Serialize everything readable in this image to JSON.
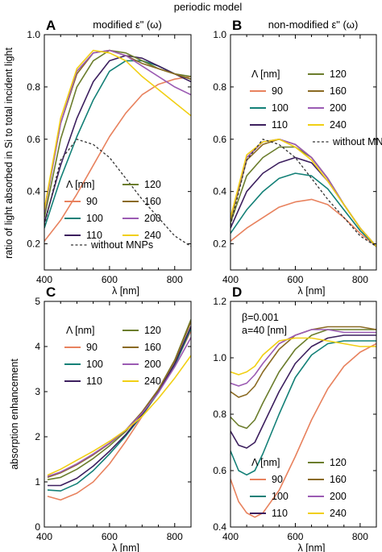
{
  "figure": {
    "title": "periodic model",
    "shared_ylabel_top": "ratio of light absorbed in Si to total incident light",
    "legend_header": "Λ [nm]",
    "colors": {
      "90": "#e8825e",
      "100": "#138077",
      "110": "#3c1f5e",
      "120": "#6b7d2c",
      "160": "#8a6a22",
      "200": "#9b5bb3",
      "240": "#f1cf14",
      "without": "#333333"
    }
  },
  "chart_data": [
    {
      "id": "A",
      "type": "line",
      "letter": "A",
      "title": "modified ε\" (ω)",
      "xlabel": "λ [nm]",
      "ylabel": "",
      "xlim": [
        400,
        850
      ],
      "ylim": [
        0.1,
        1.0
      ],
      "xticks": [
        400,
        600,
        800
      ],
      "yticks": [
        0.2,
        0.4,
        0.6,
        0.8,
        1.0
      ],
      "ytick_labels": [
        "0.2",
        "0.4",
        "0.6",
        "0.8",
        "1.0"
      ],
      "legend": [
        {
          "label": "90",
          "key": "90"
        },
        {
          "label": "100",
          "key": "100"
        },
        {
          "label": "110",
          "key": "110"
        },
        {
          "label": "120",
          "key": "120"
        },
        {
          "label": "160",
          "key": "160"
        },
        {
          "label": "200",
          "key": "200"
        },
        {
          "label": "240",
          "key": "240"
        },
        {
          "label": "without MNPs",
          "key": "without"
        }
      ],
      "series": [
        {
          "key": "90",
          "x": [
            400,
            450,
            500,
            550,
            600,
            650,
            700,
            750,
            800,
            850
          ],
          "y": [
            0.21,
            0.29,
            0.39,
            0.5,
            0.61,
            0.7,
            0.77,
            0.81,
            0.83,
            0.84
          ]
        },
        {
          "key": "100",
          "x": [
            400,
            450,
            500,
            550,
            600,
            650,
            700,
            750,
            800,
            850
          ],
          "y": [
            0.26,
            0.45,
            0.61,
            0.75,
            0.86,
            0.9,
            0.9,
            0.88,
            0.85,
            0.83
          ]
        },
        {
          "key": "110",
          "x": [
            400,
            450,
            500,
            550,
            600,
            650,
            700,
            750,
            800,
            850
          ],
          "y": [
            0.28,
            0.5,
            0.68,
            0.82,
            0.9,
            0.92,
            0.91,
            0.88,
            0.85,
            0.82
          ]
        },
        {
          "key": "120",
          "x": [
            400,
            450,
            500,
            550,
            600,
            650,
            700,
            750,
            800,
            850
          ],
          "y": [
            0.3,
            0.6,
            0.8,
            0.9,
            0.94,
            0.93,
            0.9,
            0.87,
            0.85,
            0.84
          ]
        },
        {
          "key": "160",
          "x": [
            400,
            450,
            500,
            550,
            600,
            650,
            700,
            750,
            800,
            850
          ],
          "y": [
            0.33,
            0.66,
            0.85,
            0.93,
            0.94,
            0.92,
            0.89,
            0.87,
            0.85,
            0.83
          ]
        },
        {
          "key": "200",
          "x": [
            400,
            450,
            500,
            550,
            600,
            650,
            700,
            750,
            800,
            850
          ],
          "y": [
            0.32,
            0.66,
            0.86,
            0.93,
            0.94,
            0.92,
            0.88,
            0.84,
            0.8,
            0.77
          ]
        },
        {
          "key": "240",
          "x": [
            400,
            450,
            500,
            550,
            600,
            650,
            700,
            750,
            800,
            850
          ],
          "y": [
            0.33,
            0.68,
            0.87,
            0.94,
            0.93,
            0.9,
            0.84,
            0.79,
            0.74,
            0.69
          ]
        },
        {
          "key": "without",
          "dashed": true,
          "x": [
            400,
            450,
            500,
            550,
            600,
            650,
            700,
            750,
            800,
            850
          ],
          "y": [
            0.27,
            0.52,
            0.6,
            0.58,
            0.53,
            0.45,
            0.37,
            0.3,
            0.23,
            0.19
          ]
        }
      ]
    },
    {
      "id": "B",
      "type": "line",
      "letter": "B",
      "title": "non-modified ε\" (ω)",
      "xlabel": "λ [nm]",
      "ylabel": "",
      "xlim": [
        400,
        850
      ],
      "ylim": [
        0.1,
        1.0
      ],
      "xticks": [
        400,
        600,
        800
      ],
      "yticks": [
        0.2,
        0.4,
        0.6,
        0.8,
        1.0
      ],
      "ytick_labels": [
        "0.2",
        "0.4",
        "0.6",
        "0.8",
        "1.0"
      ],
      "legend": [
        {
          "label": "90",
          "key": "90"
        },
        {
          "label": "100",
          "key": "100"
        },
        {
          "label": "110",
          "key": "110"
        },
        {
          "label": "120",
          "key": "120"
        },
        {
          "label": "160",
          "key": "160"
        },
        {
          "label": "200",
          "key": "200"
        },
        {
          "label": "240",
          "key": "240"
        },
        {
          "label": "without MNPs",
          "key": "without"
        }
      ],
      "series": [
        {
          "key": "90",
          "x": [
            400,
            450,
            500,
            550,
            600,
            650,
            700,
            750,
            800,
            850
          ],
          "y": [
            0.21,
            0.26,
            0.3,
            0.34,
            0.36,
            0.37,
            0.35,
            0.3,
            0.24,
            0.19
          ]
        },
        {
          "key": "100",
          "x": [
            400,
            450,
            500,
            550,
            600,
            650,
            700,
            750,
            800,
            850
          ],
          "y": [
            0.24,
            0.33,
            0.4,
            0.45,
            0.47,
            0.46,
            0.41,
            0.33,
            0.25,
            0.19
          ]
        },
        {
          "key": "110",
          "x": [
            400,
            450,
            500,
            550,
            600,
            650,
            700,
            750,
            800,
            850
          ],
          "y": [
            0.26,
            0.4,
            0.47,
            0.51,
            0.53,
            0.51,
            0.44,
            0.35,
            0.26,
            0.19
          ]
        },
        {
          "key": "120",
          "x": [
            400,
            450,
            500,
            550,
            600,
            650,
            700,
            750,
            800,
            850
          ],
          "y": [
            0.28,
            0.46,
            0.53,
            0.57,
            0.57,
            0.53,
            0.45,
            0.35,
            0.26,
            0.19
          ]
        },
        {
          "key": "160",
          "x": [
            400,
            450,
            500,
            550,
            600,
            650,
            700,
            750,
            800,
            850
          ],
          "y": [
            0.29,
            0.52,
            0.58,
            0.6,
            0.58,
            0.53,
            0.45,
            0.35,
            0.26,
            0.19
          ]
        },
        {
          "key": "200",
          "x": [
            400,
            450,
            500,
            550,
            600,
            650,
            700,
            750,
            800,
            850
          ],
          "y": [
            0.3,
            0.53,
            0.59,
            0.6,
            0.58,
            0.53,
            0.45,
            0.35,
            0.26,
            0.19
          ]
        },
        {
          "key": "240",
          "x": [
            400,
            450,
            500,
            550,
            600,
            650,
            700,
            750,
            800,
            850
          ],
          "y": [
            0.3,
            0.54,
            0.59,
            0.6,
            0.57,
            0.52,
            0.44,
            0.35,
            0.26,
            0.19
          ]
        },
        {
          "key": "without",
          "dashed": true,
          "x": [
            400,
            450,
            500,
            550,
            600,
            650,
            700,
            750,
            800,
            850
          ],
          "y": [
            0.27,
            0.52,
            0.6,
            0.58,
            0.53,
            0.45,
            0.37,
            0.3,
            0.23,
            0.19
          ]
        }
      ]
    },
    {
      "id": "C",
      "type": "line",
      "letter": "C",
      "title": "",
      "xlabel": "λ [nm]",
      "ylabel": "absorption enhancement",
      "xlim": [
        400,
        850
      ],
      "ylim": [
        0,
        5
      ],
      "xticks": [
        400,
        600,
        800
      ],
      "yticks": [
        0,
        1,
        2,
        3,
        4,
        5
      ],
      "ytick_labels": [
        "0",
        "1",
        "2",
        "3",
        "4",
        "5"
      ],
      "legend": [
        {
          "label": "90",
          "key": "90"
        },
        {
          "label": "100",
          "key": "100"
        },
        {
          "label": "110",
          "key": "110"
        },
        {
          "label": "120",
          "key": "120"
        },
        {
          "label": "160",
          "key": "160"
        },
        {
          "label": "200",
          "key": "200"
        },
        {
          "label": "240",
          "key": "240"
        }
      ],
      "series": [
        {
          "key": "90",
          "x": [
            410,
            450,
            500,
            550,
            600,
            650,
            700,
            750,
            800,
            850
          ],
          "y": [
            0.68,
            0.6,
            0.75,
            1.0,
            1.4,
            1.9,
            2.45,
            3.0,
            3.6,
            4.35
          ]
        },
        {
          "key": "100",
          "x": [
            410,
            450,
            500,
            550,
            600,
            650,
            700,
            750,
            800,
            850
          ],
          "y": [
            0.82,
            0.8,
            0.96,
            1.25,
            1.62,
            2.02,
            2.48,
            2.98,
            3.58,
            4.4
          ]
        },
        {
          "key": "110",
          "x": [
            410,
            450,
            500,
            550,
            600,
            650,
            700,
            750,
            800,
            850
          ],
          "y": [
            0.92,
            0.92,
            1.08,
            1.35,
            1.68,
            2.05,
            2.5,
            3.0,
            3.62,
            4.45
          ]
        },
        {
          "key": "120",
          "x": [
            410,
            450,
            500,
            550,
            600,
            650,
            700,
            750,
            800,
            850
          ],
          "y": [
            1.05,
            1.1,
            1.28,
            1.52,
            1.8,
            2.12,
            2.55,
            3.05,
            3.7,
            4.6
          ]
        },
        {
          "key": "160",
          "x": [
            410,
            450,
            500,
            550,
            600,
            650,
            700,
            750,
            800,
            850
          ],
          "y": [
            1.1,
            1.2,
            1.38,
            1.6,
            1.85,
            2.15,
            2.55,
            3.05,
            3.68,
            4.55
          ]
        },
        {
          "key": "200",
          "x": [
            410,
            450,
            500,
            550,
            600,
            650,
            700,
            750,
            800,
            850
          ],
          "y": [
            1.12,
            1.22,
            1.4,
            1.62,
            1.86,
            2.15,
            2.52,
            2.98,
            3.55,
            4.2
          ]
        },
        {
          "key": "240",
          "x": [
            410,
            450,
            500,
            550,
            600,
            650,
            700,
            750,
            800,
            850
          ],
          "y": [
            1.15,
            1.28,
            1.48,
            1.68,
            1.9,
            2.15,
            2.45,
            2.85,
            3.3,
            3.8
          ]
        }
      ]
    },
    {
      "id": "D",
      "type": "line",
      "letter": "D",
      "title": "",
      "xlabel": "λ [nm]",
      "ylabel": "",
      "xlim": [
        400,
        850
      ],
      "ylim": [
        0.4,
        1.2
      ],
      "xticks": [
        400,
        600,
        800
      ],
      "yticks": [
        0.4,
        0.6,
        0.8,
        1.0,
        1.2
      ],
      "ytick_labels": [
        "0.4",
        "0.6",
        "0.8",
        "1.0",
        "1.2"
      ],
      "annotations": [
        "β=0.001",
        "a=40 [nm]"
      ],
      "legend": [
        {
          "label": "90",
          "key": "90"
        },
        {
          "label": "100",
          "key": "100"
        },
        {
          "label": "110",
          "key": "110"
        },
        {
          "label": "120",
          "key": "120"
        },
        {
          "label": "160",
          "key": "160"
        },
        {
          "label": "200",
          "key": "200"
        },
        {
          "label": "240",
          "key": "240"
        }
      ],
      "series": [
        {
          "key": "90",
          "x": [
            400,
            425,
            450,
            475,
            500,
            550,
            600,
            650,
            700,
            750,
            800,
            850
          ],
          "y": [
            0.57,
            0.49,
            0.45,
            0.435,
            0.45,
            0.53,
            0.65,
            0.78,
            0.89,
            0.97,
            1.02,
            1.05
          ]
        },
        {
          "key": "100",
          "x": [
            400,
            425,
            450,
            475,
            500,
            550,
            600,
            650,
            700,
            750,
            800,
            850
          ],
          "y": [
            0.67,
            0.6,
            0.585,
            0.6,
            0.66,
            0.8,
            0.93,
            1.01,
            1.05,
            1.06,
            1.06,
            1.06
          ]
        },
        {
          "key": "110",
          "x": [
            400,
            425,
            450,
            475,
            500,
            550,
            600,
            650,
            700,
            750,
            800,
            850
          ],
          "y": [
            0.74,
            0.69,
            0.68,
            0.7,
            0.76,
            0.88,
            0.98,
            1.04,
            1.07,
            1.08,
            1.08,
            1.08
          ]
        },
        {
          "key": "120",
          "x": [
            400,
            425,
            450,
            475,
            500,
            550,
            600,
            650,
            700,
            750,
            800,
            850
          ],
          "y": [
            0.79,
            0.76,
            0.75,
            0.78,
            0.84,
            0.95,
            1.03,
            1.08,
            1.1,
            1.1,
            1.1,
            1.1
          ]
        },
        {
          "key": "160",
          "x": [
            400,
            425,
            450,
            475,
            500,
            550,
            600,
            650,
            700,
            750,
            800,
            850
          ],
          "y": [
            0.88,
            0.86,
            0.87,
            0.9,
            0.95,
            1.03,
            1.08,
            1.1,
            1.11,
            1.11,
            1.11,
            1.1
          ]
        },
        {
          "key": "200",
          "x": [
            400,
            425,
            450,
            475,
            500,
            550,
            600,
            650,
            700,
            750,
            800,
            850
          ],
          "y": [
            0.91,
            0.9,
            0.91,
            0.94,
            0.98,
            1.05,
            1.08,
            1.1,
            1.1,
            1.09,
            1.09,
            1.09
          ]
        },
        {
          "key": "240",
          "x": [
            400,
            425,
            450,
            475,
            500,
            550,
            600,
            650,
            700,
            750,
            800,
            850
          ],
          "y": [
            0.95,
            0.94,
            0.95,
            0.97,
            1.01,
            1.06,
            1.07,
            1.07,
            1.06,
            1.05,
            1.04,
            1.04
          ]
        }
      ]
    }
  ]
}
